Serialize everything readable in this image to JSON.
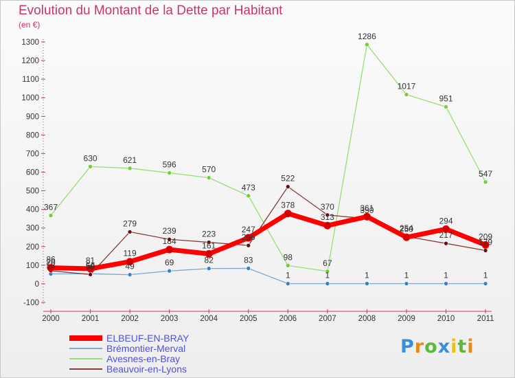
{
  "chart_data": {
    "type": "line",
    "title": "Evolution du Montant de la Dette par Habitant",
    "unit_label": "(en €)",
    "categories": [
      "2000",
      "2001",
      "2002",
      "2003",
      "2004",
      "2005",
      "2006",
      "2007",
      "2008",
      "2009",
      "2010",
      "2011"
    ],
    "ylim": [
      -100,
      1300
    ],
    "yticks": [
      -100,
      0,
      100,
      200,
      300,
      400,
      500,
      600,
      700,
      800,
      900,
      1000,
      1100,
      1200,
      1300
    ],
    "grid": false,
    "legend_position": "bottom-left",
    "series": [
      {
        "name": "ELBEUF-EN-BRAY",
        "values": [
          86,
          81,
          119,
          184,
          161,
          247,
          378,
          313,
          361,
          250,
          294,
          209
        ],
        "labels": [
          "86",
          "81",
          "119",
          "184",
          "161",
          "247",
          "378",
          "313",
          "361",
          "250",
          "294",
          "209"
        ],
        "color": "#ff0000",
        "marker": "#cc0000",
        "width": 7
      },
      {
        "name": "Brémontier-Merval",
        "values": [
          53,
          54,
          49,
          69,
          82,
          83,
          1,
          1,
          1,
          1,
          1,
          1
        ],
        "labels": [
          "53",
          "54",
          "49",
          "69",
          "82",
          "83",
          "1",
          "1",
          "1",
          "1",
          "1",
          "1"
        ],
        "color": "#7da8cf",
        "marker": "#3f7fbf",
        "width": 1.3
      },
      {
        "name": "Avesnes-en-Bray",
        "values": [
          367,
          630,
          621,
          596,
          570,
          473,
          98,
          67,
          1286,
          1017,
          951,
          547
        ],
        "labels": [
          "367",
          "630",
          "621",
          "596",
          "570",
          "473",
          "98",
          "67",
          "1286",
          "1017",
          "951",
          "547"
        ],
        "color": "#99dd77",
        "marker": "#77cc33",
        "width": 1.3
      },
      {
        "name": "Beauvoir-en-Lyons",
        "values": [
          70,
          50,
          279,
          239,
          223,
          206,
          522,
          370,
          350,
          254,
          217,
          179
        ],
        "labels": [
          "70",
          "50",
          "279",
          "239",
          "223",
          "206",
          "522",
          "370",
          "350",
          "254",
          "217",
          "179"
        ],
        "color": "#8a3a3a",
        "marker": "#661111",
        "width": 1.3
      }
    ]
  },
  "brand": {
    "letters": [
      "P",
      "r",
      "o",
      "x",
      "i",
      "t",
      "i"
    ],
    "colors": [
      "#3a8fd8",
      "#e88a1a",
      "#5fb83a",
      "#3a8fd8",
      "#e8c21a",
      "#5fb83a",
      "#e88a1a"
    ]
  }
}
